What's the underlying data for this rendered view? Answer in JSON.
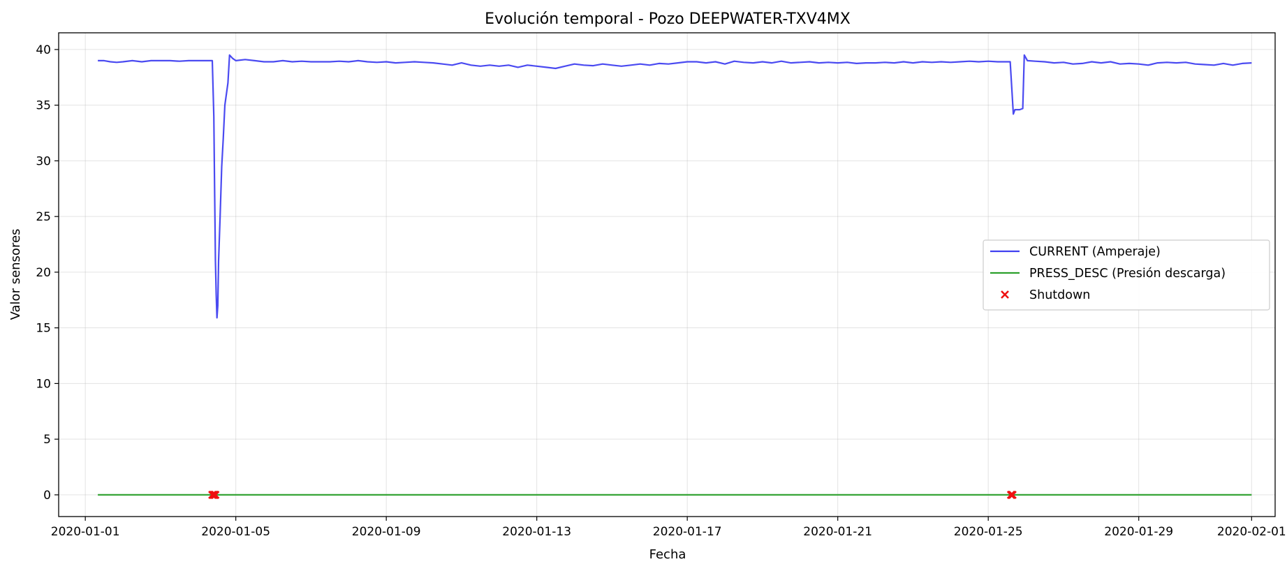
{
  "chart_data": {
    "type": "line",
    "title": "Evolución temporal - Pozo DEEPWATER-TXV4MX",
    "xlabel": "Fecha",
    "ylabel": "Valor sensores",
    "xlim": [
      "2019-12-31T07:00",
      "2020-02-01T15:00"
    ],
    "ylim": [
      -1.95,
      41.5
    ],
    "xticks": [
      "2020-01-01",
      "2020-01-05",
      "2020-01-09",
      "2020-01-13",
      "2020-01-17",
      "2020-01-21",
      "2020-01-25",
      "2020-01-29",
      "2020-02-01"
    ],
    "yticks": [
      0,
      5,
      10,
      15,
      20,
      25,
      30,
      35,
      40
    ],
    "grid": true,
    "legend_position": "center-right",
    "series": [
      {
        "name": "CURRENT (Amperaje)",
        "color": "#4040f0",
        "kind": "line",
        "points": [
          [
            "2020-01-01T08:00",
            39.0
          ],
          [
            "2020-01-01T12:00",
            39.0
          ],
          [
            "2020-01-01T16:00",
            38.9
          ],
          [
            "2020-01-01T20:00",
            38.85
          ],
          [
            "2020-01-02T00:00",
            38.9
          ],
          [
            "2020-01-02T06:00",
            39.0
          ],
          [
            "2020-01-02T12:00",
            38.9
          ],
          [
            "2020-01-02T18:00",
            39.0
          ],
          [
            "2020-01-03T00:00",
            39.0
          ],
          [
            "2020-01-03T06:00",
            39.0
          ],
          [
            "2020-01-03T12:00",
            38.95
          ],
          [
            "2020-01-03T18:00",
            39.0
          ],
          [
            "2020-01-04T00:00",
            39.0
          ],
          [
            "2020-01-04T06:00",
            39.0
          ],
          [
            "2020-01-04T09:00",
            39.0
          ],
          [
            "2020-01-04T10:00",
            34.0
          ],
          [
            "2020-01-04T10:30",
            27.0
          ],
          [
            "2020-01-04T11:00",
            21.0
          ],
          [
            "2020-01-04T11:30",
            18.0
          ],
          [
            "2020-01-04T12:00",
            15.9
          ],
          [
            "2020-01-04T12:30",
            17.0
          ],
          [
            "2020-01-04T13:00",
            21.0
          ],
          [
            "2020-01-04T14:00",
            25.0
          ],
          [
            "2020-01-04T15:00",
            29.5
          ],
          [
            "2020-01-04T16:00",
            32.0
          ],
          [
            "2020-01-04T17:00",
            35.0
          ],
          [
            "2020-01-04T19:00",
            37.0
          ],
          [
            "2020-01-04T20:00",
            39.5
          ],
          [
            "2020-01-04T22:00",
            39.2
          ],
          [
            "2020-01-05T00:00",
            39.0
          ],
          [
            "2020-01-05T06:00",
            39.1
          ],
          [
            "2020-01-05T12:00",
            39.0
          ],
          [
            "2020-01-05T18:00",
            38.9
          ],
          [
            "2020-01-06T00:00",
            38.9
          ],
          [
            "2020-01-06T06:00",
            39.0
          ],
          [
            "2020-01-06T12:00",
            38.9
          ],
          [
            "2020-01-06T18:00",
            38.95
          ],
          [
            "2020-01-07T00:00",
            38.9
          ],
          [
            "2020-01-07T06:00",
            38.9
          ],
          [
            "2020-01-07T12:00",
            38.9
          ],
          [
            "2020-01-07T18:00",
            38.95
          ],
          [
            "2020-01-08T00:00",
            38.9
          ],
          [
            "2020-01-08T06:00",
            39.0
          ],
          [
            "2020-01-08T12:00",
            38.9
          ],
          [
            "2020-01-08T18:00",
            38.85
          ],
          [
            "2020-01-09T00:00",
            38.9
          ],
          [
            "2020-01-09T06:00",
            38.8
          ],
          [
            "2020-01-09T12:00",
            38.85
          ],
          [
            "2020-01-09T18:00",
            38.9
          ],
          [
            "2020-01-10T00:00",
            38.85
          ],
          [
            "2020-01-10T06:00",
            38.8
          ],
          [
            "2020-01-10T12:00",
            38.7
          ],
          [
            "2020-01-10T18:00",
            38.6
          ],
          [
            "2020-01-11T00:00",
            38.8
          ],
          [
            "2020-01-11T06:00",
            38.6
          ],
          [
            "2020-01-11T12:00",
            38.5
          ],
          [
            "2020-01-11T18:00",
            38.6
          ],
          [
            "2020-01-12T00:00",
            38.5
          ],
          [
            "2020-01-12T06:00",
            38.6
          ],
          [
            "2020-01-12T12:00",
            38.4
          ],
          [
            "2020-01-12T18:00",
            38.6
          ],
          [
            "2020-01-13T00:00",
            38.5
          ],
          [
            "2020-01-13T06:00",
            38.4
          ],
          [
            "2020-01-13T12:00",
            38.3
          ],
          [
            "2020-01-13T18:00",
            38.5
          ],
          [
            "2020-01-14T00:00",
            38.7
          ],
          [
            "2020-01-14T06:00",
            38.6
          ],
          [
            "2020-01-14T12:00",
            38.55
          ],
          [
            "2020-01-14T18:00",
            38.7
          ],
          [
            "2020-01-15T00:00",
            38.6
          ],
          [
            "2020-01-15T06:00",
            38.5
          ],
          [
            "2020-01-15T12:00",
            38.6
          ],
          [
            "2020-01-15T18:00",
            38.7
          ],
          [
            "2020-01-16T00:00",
            38.6
          ],
          [
            "2020-01-16T06:00",
            38.75
          ],
          [
            "2020-01-16T12:00",
            38.7
          ],
          [
            "2020-01-16T18:00",
            38.8
          ],
          [
            "2020-01-17T00:00",
            38.9
          ],
          [
            "2020-01-17T06:00",
            38.9
          ],
          [
            "2020-01-17T12:00",
            38.8
          ],
          [
            "2020-01-17T18:00",
            38.9
          ],
          [
            "2020-01-18T00:00",
            38.7
          ],
          [
            "2020-01-18T06:00",
            38.95
          ],
          [
            "2020-01-18T12:00",
            38.85
          ],
          [
            "2020-01-18T18:00",
            38.8
          ],
          [
            "2020-01-19T00:00",
            38.9
          ],
          [
            "2020-01-19T06:00",
            38.8
          ],
          [
            "2020-01-19T12:00",
            38.95
          ],
          [
            "2020-01-19T18:00",
            38.8
          ],
          [
            "2020-01-20T00:00",
            38.85
          ],
          [
            "2020-01-20T06:00",
            38.9
          ],
          [
            "2020-01-20T12:00",
            38.8
          ],
          [
            "2020-01-20T18:00",
            38.85
          ],
          [
            "2020-01-21T00:00",
            38.8
          ],
          [
            "2020-01-21T06:00",
            38.85
          ],
          [
            "2020-01-21T12:00",
            38.75
          ],
          [
            "2020-01-21T18:00",
            38.8
          ],
          [
            "2020-01-22T00:00",
            38.8
          ],
          [
            "2020-01-22T06:00",
            38.85
          ],
          [
            "2020-01-22T12:00",
            38.8
          ],
          [
            "2020-01-22T18:00",
            38.9
          ],
          [
            "2020-01-23T00:00",
            38.8
          ],
          [
            "2020-01-23T06:00",
            38.9
          ],
          [
            "2020-01-23T12:00",
            38.85
          ],
          [
            "2020-01-23T18:00",
            38.9
          ],
          [
            "2020-01-24T00:00",
            38.85
          ],
          [
            "2020-01-24T06:00",
            38.9
          ],
          [
            "2020-01-24T12:00",
            38.95
          ],
          [
            "2020-01-24T18:00",
            38.9
          ],
          [
            "2020-01-25T00:00",
            38.95
          ],
          [
            "2020-01-25T06:00",
            38.9
          ],
          [
            "2020-01-25T12:00",
            38.9
          ],
          [
            "2020-01-25T14:00",
            38.9
          ],
          [
            "2020-01-25T15:00",
            36.5
          ],
          [
            "2020-01-25T16:00",
            34.2
          ],
          [
            "2020-01-25T17:00",
            34.6
          ],
          [
            "2020-01-25T20:00",
            34.6
          ],
          [
            "2020-01-25T22:00",
            34.7
          ],
          [
            "2020-01-25T23:00",
            39.5
          ],
          [
            "2020-01-26T01:00",
            39.0
          ],
          [
            "2020-01-26T06:00",
            38.95
          ],
          [
            "2020-01-26T12:00",
            38.9
          ],
          [
            "2020-01-26T18:00",
            38.8
          ],
          [
            "2020-01-27T00:00",
            38.85
          ],
          [
            "2020-01-27T06:00",
            38.7
          ],
          [
            "2020-01-27T12:00",
            38.75
          ],
          [
            "2020-01-27T18:00",
            38.9
          ],
          [
            "2020-01-28T00:00",
            38.8
          ],
          [
            "2020-01-28T06:00",
            38.9
          ],
          [
            "2020-01-28T12:00",
            38.7
          ],
          [
            "2020-01-28T18:00",
            38.75
          ],
          [
            "2020-01-29T00:00",
            38.7
          ],
          [
            "2020-01-29T06:00",
            38.6
          ],
          [
            "2020-01-29T12:00",
            38.8
          ],
          [
            "2020-01-29T18:00",
            38.85
          ],
          [
            "2020-01-30T00:00",
            38.8
          ],
          [
            "2020-01-30T06:00",
            38.85
          ],
          [
            "2020-01-30T12:00",
            38.7
          ],
          [
            "2020-01-30T18:00",
            38.65
          ],
          [
            "2020-01-31T00:00",
            38.6
          ],
          [
            "2020-01-31T06:00",
            38.75
          ],
          [
            "2020-01-31T12:00",
            38.6
          ],
          [
            "2020-01-31T18:00",
            38.75
          ],
          [
            "2020-02-01T00:00",
            38.8
          ]
        ]
      },
      {
        "name": "PRESS_DESC (Presión descarga)",
        "color": "#2ca02c",
        "kind": "line",
        "points": [
          [
            "2020-01-01T08:00",
            0
          ],
          [
            "2020-02-01T00:00",
            0
          ]
        ]
      },
      {
        "name": "Shutdown",
        "color": "#ee1111",
        "kind": "scatter",
        "marker": "x",
        "points": [
          [
            "2020-01-04T09:00",
            0
          ],
          [
            "2020-01-04T09:30",
            0
          ],
          [
            "2020-01-04T10:00",
            0
          ],
          [
            "2020-01-04T10:30",
            0
          ],
          [
            "2020-01-04T11:00",
            0
          ],
          [
            "2020-01-25T14:30",
            0
          ],
          [
            "2020-01-25T15:00",
            0
          ],
          [
            "2020-01-25T15:30",
            0
          ]
        ]
      }
    ]
  }
}
